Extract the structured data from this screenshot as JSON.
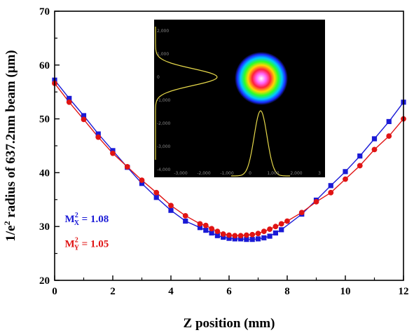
{
  "chart_data": {
    "type": "scatter",
    "xlabel": "Z position  (mm)",
    "ylabel_prefix": "1/e",
    "ylabel_sup": "2",
    "ylabel_suffix": " radius of 637.2nm beam  (μm)",
    "xlim": [
      0,
      12
    ],
    "ylim": [
      20,
      70
    ],
    "x_ticks": [
      "0",
      "2",
      "4",
      "6",
      "8",
      "10",
      "12"
    ],
    "y_ticks": [
      "20",
      "30",
      "40",
      "50",
      "60",
      "70"
    ],
    "grid": false,
    "series": [
      {
        "name": "M_X",
        "color": "#1a1ad6",
        "marker": "square",
        "x": [
          0,
          0.5,
          1.0,
          1.5,
          2.0,
          2.5,
          3.0,
          3.5,
          4.0,
          4.5,
          5.0,
          5.2,
          5.4,
          5.6,
          5.8,
          6.0,
          6.2,
          6.4,
          6.6,
          6.8,
          7.0,
          7.2,
          7.4,
          7.6,
          7.8,
          8.5,
          9.0,
          9.5,
          10.0,
          10.5,
          11.0,
          11.5,
          12.0
        ],
        "y": [
          57.2,
          53.8,
          50.6,
          47.2,
          44.1,
          41.0,
          38.0,
          35.4,
          33.0,
          31.0,
          29.8,
          29.3,
          28.8,
          28.3,
          28.0,
          27.8,
          27.7,
          27.7,
          27.6,
          27.6,
          27.7,
          27.9,
          28.2,
          28.8,
          29.4,
          32.3,
          34.9,
          37.6,
          40.2,
          43.1,
          46.3,
          49.5,
          53.1
        ]
      },
      {
        "name": "M_Y",
        "color": "#e01414",
        "marker": "circle",
        "x": [
          0,
          0.5,
          1.0,
          1.5,
          2.0,
          2.5,
          3.0,
          3.5,
          4.0,
          4.5,
          5.0,
          5.2,
          5.4,
          5.6,
          5.8,
          6.0,
          6.2,
          6.4,
          6.6,
          6.8,
          7.0,
          7.2,
          7.4,
          7.6,
          7.8,
          8.0,
          8.5,
          9.0,
          9.5,
          10.0,
          10.5,
          11.0,
          11.5,
          12.0
        ],
        "y": [
          56.6,
          53.1,
          49.9,
          46.6,
          43.6,
          41.1,
          38.6,
          36.3,
          33.9,
          32.0,
          30.5,
          30.2,
          29.6,
          29.1,
          28.6,
          28.4,
          28.3,
          28.3,
          28.4,
          28.5,
          28.7,
          29.1,
          29.5,
          30.0,
          30.5,
          31.0,
          32.6,
          34.6,
          36.3,
          38.8,
          41.3,
          44.3,
          46.8,
          50.0
        ]
      }
    ],
    "annotations": [
      {
        "label": "M",
        "sup": "2",
        "sub": "X",
        "value": " = 1.08",
        "color": "#1a1ad6",
        "data_x": 0.35,
        "data_y": 30.8
      },
      {
        "label": "M",
        "sup": "2",
        "sub": "Y",
        "value": " = 1.05",
        "color": "#e01414",
        "data_x": 0.35,
        "data_y": 26.2
      }
    ],
    "inset": {
      "description_colors": {
        "background": "#000000",
        "profile_line": "#e6d84a"
      },
      "y_ticks": [
        "2,000",
        "1,000",
        "0",
        "-1,000",
        "-2,000",
        "-3,000",
        "-4,000"
      ],
      "x_ticks": [
        "-3,000",
        "-2,000",
        "-1,000",
        "0",
        "1,000",
        "2,000",
        "3"
      ]
    }
  }
}
